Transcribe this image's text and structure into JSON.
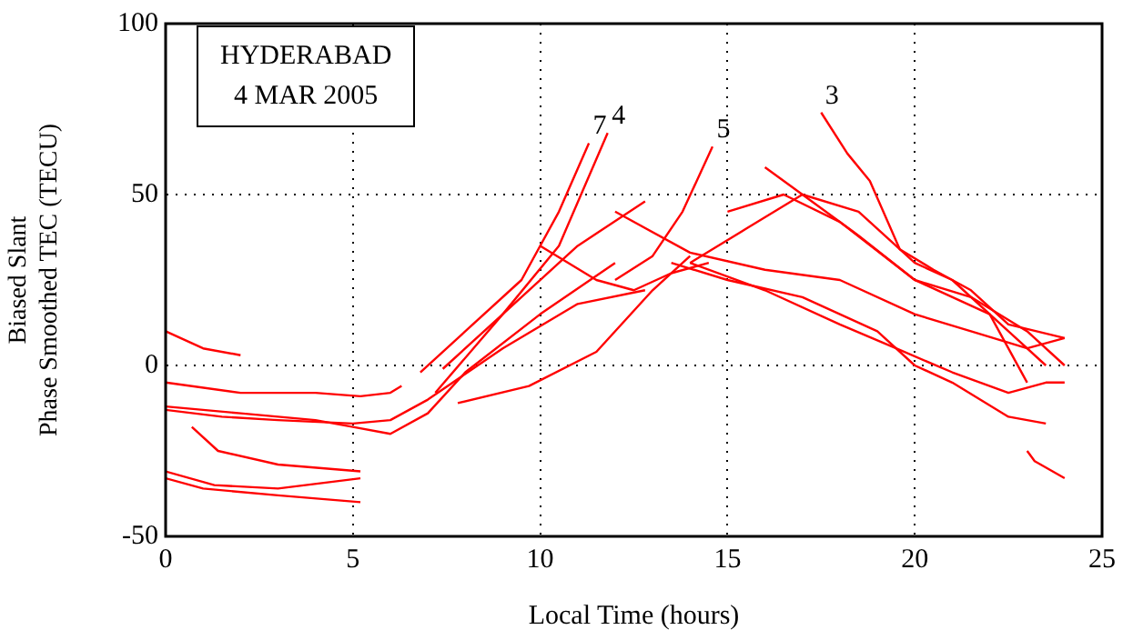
{
  "chart_data": {
    "type": "line",
    "xlabel": "Local Time (hours)",
    "ylabel": "Biased Slant\nPhase Smoothed TEC (TECU)",
    "xlim": [
      0,
      25
    ],
    "ylim": [
      -50,
      100
    ],
    "xticks": [
      0,
      5,
      10,
      15,
      20,
      25
    ],
    "yticks": [
      -50,
      0,
      50,
      100
    ],
    "grid": true,
    "legend": false,
    "marker": "none",
    "line_style": "solid",
    "annotations": [
      "HYDERABAD",
      "4 MAR 2005"
    ],
    "series": [
      {
        "color": "#ff0000",
        "x": [
          0,
          1.3,
          3,
          5.2
        ],
        "values": [
          -31,
          -35,
          -36,
          -33
        ]
      },
      {
        "color": "#ff0000",
        "x": [
          0,
          1,
          3,
          5.2
        ],
        "values": [
          -33,
          -36,
          -38,
          -40
        ]
      },
      {
        "color": "#ff0000",
        "x": [
          0.7,
          1.4,
          3,
          5.2
        ],
        "values": [
          -18,
          -25,
          -29,
          -31
        ]
      },
      {
        "color": "#ff0000",
        "x": [
          0,
          2,
          4,
          5,
          6,
          7,
          8,
          10,
          12
        ],
        "values": [
          -12,
          -14,
          -16,
          -18,
          -20,
          -14,
          -2,
          15,
          30
        ]
      },
      {
        "color": "#ff0000",
        "x": [
          0,
          2,
          4,
          5.2,
          6,
          6.3
        ],
        "values": [
          -5,
          -8,
          -8,
          -9,
          -8,
          -6
        ]
      },
      {
        "color": "#ff0000",
        "x": [
          0,
          1,
          2
        ],
        "values": [
          10,
          5,
          3
        ]
      },
      {
        "color": "#ff0000",
        "x": [
          0,
          1.5,
          3,
          5,
          6,
          7,
          9,
          11,
          12.8
        ],
        "values": [
          -13,
          -15,
          -16,
          -17,
          -16,
          -10,
          5,
          18,
          22
        ]
      },
      {
        "name": "7",
        "color": "#ff0000",
        "x": [
          6.8,
          8,
          9.5,
          10.5,
          11.3
        ],
        "values": [
          -2,
          10,
          25,
          45,
          65
        ]
      },
      {
        "name": "4",
        "color": "#ff0000",
        "x": [
          7.2,
          9,
          10.5,
          11.8
        ],
        "values": [
          -8,
          15,
          35,
          68
        ]
      },
      {
        "color": "#ff0000",
        "x": [
          7.4,
          9,
          11,
          12.8
        ],
        "values": [
          -1,
          15,
          35,
          48
        ]
      },
      {
        "color": "#ff0000",
        "x": [
          7.8,
          9.7,
          11.5,
          13,
          14
        ],
        "values": [
          -11,
          -6,
          4,
          22,
          32
        ]
      },
      {
        "color": "#ff0000",
        "x": [
          10,
          11.5,
          12.5,
          13.5,
          14.5
        ],
        "values": [
          35,
          25,
          22,
          27,
          30
        ]
      },
      {
        "name": "5",
        "color": "#ff0000",
        "x": [
          12,
          13,
          13.8,
          14.6
        ],
        "values": [
          25,
          32,
          45,
          64
        ]
      },
      {
        "name": "3",
        "color": "#ff0000",
        "x": [
          17.5,
          18.2,
          18.8,
          19.6,
          20.5,
          21.5,
          22.5,
          24
        ],
        "values": [
          74,
          62,
          54,
          34,
          28,
          22,
          12,
          8
        ]
      },
      {
        "color": "#ff0000",
        "x": [
          13.5,
          15,
          17,
          19,
          20,
          21,
          22.5,
          23.5
        ],
        "values": [
          30,
          25,
          20,
          10,
          0,
          -5,
          -15,
          -17
        ]
      },
      {
        "color": "#ff0000",
        "x": [
          14,
          16,
          18,
          19.5,
          21,
          22.5,
          23.5,
          24
        ],
        "values": [
          30,
          22,
          12,
          5,
          -2,
          -8,
          -5,
          -5
        ]
      },
      {
        "color": "#ff0000",
        "x": [
          12,
          14,
          16,
          18,
          20,
          21.5,
          23,
          24
        ],
        "values": [
          45,
          33,
          28,
          25,
          15,
          10,
          5,
          8
        ]
      },
      {
        "color": "#ff0000",
        "x": [
          14,
          15.5,
          17,
          18.5,
          20,
          21,
          22.5,
          23.5
        ],
        "values": [
          30,
          40,
          50,
          45,
          30,
          25,
          10,
          0
        ]
      },
      {
        "color": "#ff0000",
        "x": [
          15,
          16.5,
          18,
          20,
          21.5,
          23,
          24
        ],
        "values": [
          45,
          50,
          42,
          25,
          20,
          10,
          0
        ]
      },
      {
        "color": "#ff0000",
        "x": [
          16,
          17,
          18.5,
          20,
          22,
          23
        ],
        "values": [
          58,
          50,
          38,
          25,
          15,
          -5
        ]
      },
      {
        "color": "#ff0000",
        "x": [
          23,
          23.2,
          24
        ],
        "values": [
          -25,
          -28,
          -33
        ]
      }
    ]
  }
}
